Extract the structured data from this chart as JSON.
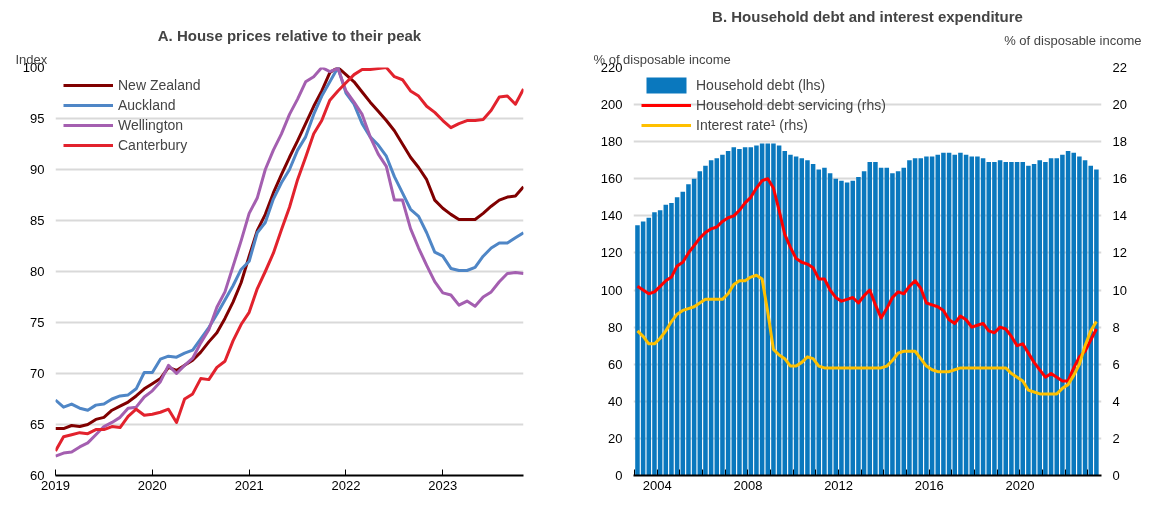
{
  "chart_data": [
    {
      "type": "line",
      "title": "A. House prices relative to their peak",
      "ylabel": "Index",
      "x": [
        "2019-01",
        "2019-02",
        "2019-03",
        "2019-04",
        "2019-05",
        "2019-06",
        "2019-07",
        "2019-08",
        "2019-09",
        "2019-10",
        "2019-11",
        "2019-12",
        "2020-01",
        "2020-02",
        "2020-03",
        "2020-04",
        "2020-05",
        "2020-06",
        "2020-07",
        "2020-08",
        "2020-09",
        "2020-10",
        "2020-11",
        "2020-12",
        "2021-01",
        "2021-02",
        "2021-03",
        "2021-04",
        "2021-05",
        "2021-06",
        "2021-07",
        "2021-08",
        "2021-09",
        "2021-10",
        "2021-11",
        "2021-12",
        "2022-01",
        "2022-02",
        "2022-03",
        "2022-04",
        "2022-05",
        "2022-06",
        "2022-07",
        "2022-08",
        "2022-09",
        "2022-10",
        "2022-11",
        "2022-12",
        "2023-01",
        "2023-02",
        "2023-03",
        "2023-04",
        "2023-05",
        "2023-06",
        "2023-07",
        "2023-08",
        "2023-09",
        "2023-10",
        "2023-11"
      ],
      "series": [
        {
          "name": "New Zealand",
          "color": "#800000",
          "values": [
            64.6,
            64.6,
            64.9,
            64.8,
            65.0,
            65.5,
            65.7,
            66.4,
            66.8,
            67.2,
            67.8,
            68.5,
            69.0,
            69.5,
            70.6,
            70.3,
            70.8,
            71.3,
            72.1,
            73.1,
            74.0,
            75.4,
            77.0,
            78.9,
            81.5,
            84.0,
            85.6,
            87.7,
            89.5,
            91.2,
            92.8,
            94.5,
            96.2,
            97.7,
            99.5,
            100,
            99.3,
            98.6,
            97.6,
            96.6,
            95.7,
            94.8,
            93.8,
            92.5,
            91.2,
            90.2,
            89.0,
            87.0,
            86.2,
            85.6,
            85.1,
            85.1,
            85.1,
            85.7,
            86.4,
            87.0,
            87.3,
            87.4,
            88.3
          ]
        },
        {
          "name": "Auckland",
          "color": "#4f86c6",
          "values": [
            67.4,
            66.7,
            67.0,
            66.6,
            66.4,
            66.9,
            67.0,
            67.5,
            67.8,
            67.9,
            68.5,
            70.1,
            70.1,
            71.4,
            71.7,
            71.6,
            72.0,
            72.3,
            73.4,
            74.5,
            75.8,
            77.2,
            78.6,
            80.2,
            81.0,
            83.8,
            84.8,
            87.1,
            88.7,
            90.0,
            91.9,
            93.2,
            95.4,
            97.2,
            98.6,
            100,
            97.5,
            96.4,
            94.5,
            93.2,
            92.4,
            91.3,
            89.3,
            87.7,
            86.1,
            85.4,
            83.8,
            81.9,
            81.5,
            80.3,
            80.1,
            80.1,
            80.4,
            81.5,
            82.3,
            82.8,
            82.8,
            83.3,
            83.8
          ]
        },
        {
          "name": "Wellington",
          "color": "#a45fb0",
          "values": [
            61.9,
            62.2,
            62.3,
            62.8,
            63.2,
            64.0,
            64.8,
            65.2,
            65.7,
            66.6,
            66.7,
            67.7,
            68.3,
            69.2,
            70.8,
            70.0,
            70.8,
            71.5,
            73.0,
            74.3,
            76.5,
            78.0,
            80.5,
            83.0,
            85.7,
            87.2,
            90.0,
            91.9,
            93.5,
            95.4,
            96.9,
            98.6,
            99.1,
            100,
            99.6,
            99.9,
            97.7,
            96.6,
            95.4,
            93.2,
            91.5,
            90.3,
            87.0,
            87.0,
            84.2,
            82.3,
            80.6,
            79.0,
            77.9,
            77.7,
            76.7,
            77.1,
            76.6,
            77.5,
            78.0,
            79.0,
            79.8,
            79.9,
            79.8
          ]
        },
        {
          "name": "Canterbury",
          "color": "#e2222d",
          "values": [
            62.4,
            63.8,
            64.0,
            64.2,
            64.1,
            64.5,
            64.5,
            64.8,
            64.7,
            65.8,
            66.5,
            65.9,
            66.0,
            66.2,
            66.5,
            65.2,
            67.5,
            68.0,
            69.5,
            69.4,
            70.6,
            71.2,
            73.2,
            74.8,
            76.0,
            78.3,
            80.0,
            81.8,
            84.1,
            86.3,
            89.0,
            91.2,
            93.5,
            94.8,
            96.8,
            97.7,
            98.5,
            99.3,
            99.8,
            99.8,
            99.9,
            100,
            99.1,
            98.8,
            97.7,
            97.2,
            96.2,
            95.6,
            94.8,
            94.1,
            94.5,
            94.8,
            94.8,
            94.9,
            95.8,
            97.1,
            97.2,
            96.4,
            97.9
          ]
        }
      ],
      "xlim": [
        "2019",
        "2023-11"
      ],
      "xticks": [
        "2019",
        "2020",
        "2021",
        "2022",
        "2023"
      ],
      "ylim": [
        60,
        100
      ],
      "yticks": [
        60,
        65,
        70,
        75,
        80,
        85,
        90,
        95,
        100
      ],
      "grid": "y",
      "legend": "top left",
      "marker": "none",
      "line_style": "solid"
    },
    {
      "type": "bar",
      "title": "B. Household debt and interest expenditure",
      "ylabel": "% of disposable income",
      "y2label": "% of disposable income",
      "x": [
        2003.125,
        2003.375,
        2003.625,
        2003.875,
        2004.125,
        2004.375,
        2004.625,
        2004.875,
        2005.125,
        2005.375,
        2005.625,
        2005.875,
        2006.125,
        2006.375,
        2006.625,
        2006.875,
        2007.125,
        2007.375,
        2007.625,
        2007.875,
        2008.125,
        2008.375,
        2008.625,
        2008.875,
        2009.125,
        2009.375,
        2009.625,
        2009.875,
        2010.125,
        2010.375,
        2010.625,
        2010.875,
        2011.125,
        2011.375,
        2011.625,
        2011.875,
        2012.125,
        2012.375,
        2012.625,
        2012.875,
        2013.125,
        2013.375,
        2013.625,
        2013.875,
        2014.125,
        2014.375,
        2014.625,
        2014.875,
        2015.125,
        2015.375,
        2015.625,
        2015.875,
        2016.125,
        2016.375,
        2016.625,
        2016.875,
        2017.125,
        2017.375,
        2017.625,
        2017.875,
        2018.125,
        2018.375,
        2018.625,
        2018.875,
        2019.125,
        2019.375,
        2019.625,
        2019.875,
        2020.125,
        2020.375,
        2020.625,
        2020.875,
        2021.125,
        2021.375,
        2021.625,
        2021.875,
        2022.125,
        2022.375,
        2022.625,
        2022.875,
        2023.125,
        2023.375
      ],
      "series": [
        {
          "name": "Household debt (lhs)",
          "type": "bar",
          "color": "#0a78be",
          "values": [
            135,
            137,
            139,
            142,
            143,
            146,
            147,
            150,
            153,
            157,
            160,
            164,
            167,
            170,
            171,
            173,
            175,
            177,
            176,
            177,
            177,
            178,
            179,
            179,
            179,
            178,
            175,
            173,
            172,
            171,
            170,
            168,
            165,
            166,
            163,
            160,
            159,
            158,
            159,
            161,
            164,
            169,
            169,
            166,
            166,
            163,
            164,
            166,
            170,
            171,
            171,
            172,
            172,
            173,
            174,
            174,
            173,
            174,
            173,
            172,
            172,
            171,
            169,
            169,
            170,
            169,
            169,
            169,
            169,
            167,
            168,
            170,
            169,
            171,
            171,
            173,
            175,
            174,
            172,
            170,
            167,
            165
          ]
        },
        {
          "name": "Household debt servicing (rhs)",
          "type": "line",
          "axis": "y2",
          "color": "#ff0000",
          "values": [
            10.2,
            10.0,
            9.8,
            9.9,
            10.2,
            10.5,
            10.7,
            11.3,
            11.5,
            12.0,
            12.4,
            12.8,
            13.1,
            13.3,
            13.4,
            13.7,
            13.9,
            14.0,
            14.3,
            14.7,
            15.0,
            15.5,
            15.9,
            16.0,
            15.5,
            14.3,
            13.0,
            12.3,
            11.7,
            11.5,
            11.4,
            11.2,
            10.6,
            10.6,
            10.0,
            9.6,
            9.4,
            9.5,
            9.6,
            9.3,
            9.7,
            10.0,
            9.2,
            8.5,
            9.0,
            9.6,
            9.9,
            9.8,
            10.2,
            10.5,
            10.1,
            9.3,
            9.2,
            9.1,
            8.9,
            8.4,
            8.2,
            8.6,
            8.4,
            8.0,
            8.1,
            8.2,
            7.8,
            7.7,
            8.0,
            7.9,
            7.5,
            7.0,
            7.1,
            6.6,
            6.1,
            5.7,
            5.3,
            5.5,
            5.3,
            5.1,
            5.1,
            5.8,
            6.4,
            6.7,
            7.3,
            7.9
          ]
        },
        {
          "name": "Interest rate¹ (rhs)",
          "type": "line",
          "axis": "y2",
          "color": "#ffc000",
          "values": [
            7.8,
            7.5,
            7.1,
            7.1,
            7.4,
            7.8,
            8.3,
            8.7,
            8.9,
            9.0,
            9.1,
            9.3,
            9.5,
            9.5,
            9.5,
            9.5,
            9.8,
            10.3,
            10.5,
            10.5,
            10.7,
            10.8,
            10.6,
            8.8,
            6.8,
            6.5,
            6.3,
            5.9,
            5.9,
            6.1,
            6.4,
            6.3,
            5.9,
            5.8,
            5.8,
            5.8,
            5.8,
            5.8,
            5.8,
            5.8,
            5.8,
            5.8,
            5.8,
            5.8,
            5.9,
            6.2,
            6.6,
            6.7,
            6.7,
            6.7,
            6.3,
            5.9,
            5.7,
            5.6,
            5.6,
            5.6,
            5.7,
            5.8,
            5.8,
            5.8,
            5.8,
            5.8,
            5.8,
            5.8,
            5.8,
            5.8,
            5.5,
            5.3,
            5.1,
            4.6,
            4.5,
            4.4,
            4.4,
            4.4,
            4.4,
            4.7,
            4.9,
            5.4,
            6.0,
            7.0,
            7.8,
            8.3
          ]
        }
      ],
      "xlim": [
        2002.95,
        2023.6
      ],
      "xticks": [
        {
          "value": 2003,
          "label": null
        },
        {
          "value": 2004,
          "label": "2004"
        },
        {
          "value": 2005,
          "label": null
        },
        {
          "value": 2006,
          "label": null
        },
        {
          "value": 2007,
          "label": null
        },
        {
          "value": 2008,
          "label": "2008"
        },
        {
          "value": 2009,
          "label": null
        },
        {
          "value": 2010,
          "label": null
        },
        {
          "value": 2011,
          "label": null
        },
        {
          "value": 2012,
          "label": "2012"
        },
        {
          "value": 2013,
          "label": null
        },
        {
          "value": 2014,
          "label": null
        },
        {
          "value": 2015,
          "label": null
        },
        {
          "value": 2016,
          "label": "2016"
        },
        {
          "value": 2017,
          "label": null
        },
        {
          "value": 2018,
          "label": null
        },
        {
          "value": 2019,
          "label": null
        },
        {
          "value": 2020,
          "label": "2020"
        },
        {
          "value": 2021,
          "label": null
        },
        {
          "value": 2022,
          "label": null
        },
        {
          "value": 2023,
          "label": null
        }
      ],
      "ylim": [
        0,
        220
      ],
      "yticks": [
        0,
        20,
        40,
        60,
        80,
        100,
        120,
        140,
        160,
        180,
        200,
        220
      ],
      "y2lim": [
        0,
        22
      ],
      "y2ticks": [
        0,
        2,
        4,
        6,
        8,
        10,
        12,
        14,
        16,
        18,
        20,
        22
      ],
      "grid": "y",
      "legend": "top left",
      "marker": "none",
      "line_style": "solid"
    }
  ]
}
